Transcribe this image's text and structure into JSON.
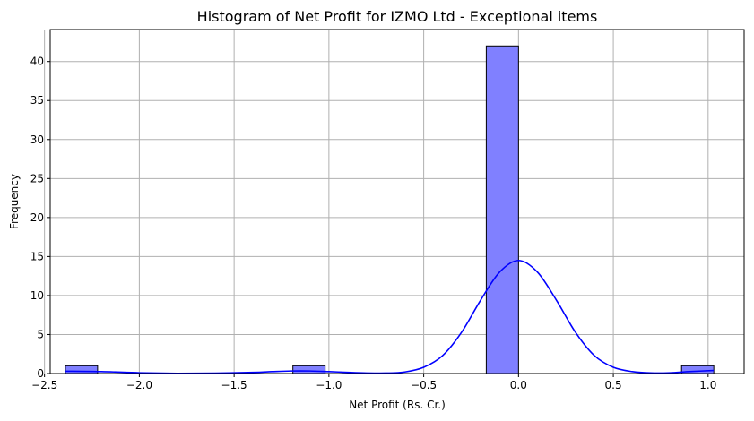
{
  "chart_data": {
    "type": "bar",
    "title": "Histogram of Net Profit for IZMO Ltd - Exceptional items",
    "xlabel": "Net Profit (Rs. Cr.)",
    "ylabel": "Frequency",
    "xlim": [
      -2.47,
      1.19
    ],
    "ylim": [
      0,
      44.1
    ],
    "x_ticks": [
      -2.5,
      -2.0,
      -1.5,
      -1.0,
      -0.5,
      0.0,
      0.5,
      1.0
    ],
    "x_tick_labels": [
      "−2.5",
      "−2.0",
      "−1.5",
      "−1.0",
      "−0.5",
      "0.0",
      "0.5",
      "1.0"
    ],
    "y_ticks": [
      0,
      5,
      10,
      15,
      20,
      25,
      30,
      35,
      40
    ],
    "y_tick_labels": [
      "0",
      "5",
      "10",
      "15",
      "20",
      "25",
      "30",
      "35",
      "40"
    ],
    "grid": true,
    "bins": [
      {
        "x0": -2.39,
        "x1": -2.22,
        "count": 1
      },
      {
        "x0": -1.19,
        "x1": -1.02,
        "count": 1
      },
      {
        "x0": -0.17,
        "x1": 0.0,
        "count": 42
      },
      {
        "x0": 0.86,
        "x1": 1.03,
        "count": 1
      }
    ],
    "kde": {
      "x": [
        -2.39,
        -2.2,
        -2.0,
        -1.8,
        -1.6,
        -1.4,
        -1.3,
        -1.2,
        -1.1,
        -1.0,
        -0.9,
        -0.8,
        -0.7,
        -0.6,
        -0.5,
        -0.4,
        -0.3,
        -0.2,
        -0.1,
        0.0,
        0.1,
        0.2,
        0.3,
        0.4,
        0.5,
        0.6,
        0.7,
        0.8,
        0.9,
        1.03
      ],
      "y": [
        0.3,
        0.25,
        0.1,
        0.03,
        0.05,
        0.15,
        0.25,
        0.33,
        0.33,
        0.25,
        0.15,
        0.07,
        0.06,
        0.2,
        0.8,
        2.3,
        5.3,
        9.4,
        13.0,
        14.5,
        13.0,
        9.4,
        5.3,
        2.3,
        0.8,
        0.25,
        0.08,
        0.1,
        0.25,
        0.4
      ]
    },
    "colors": {
      "bar_fill": "#8080ff",
      "bar_edge": "#000000",
      "kde_line": "#0000ff",
      "grid": "#b0b0b0"
    }
  }
}
